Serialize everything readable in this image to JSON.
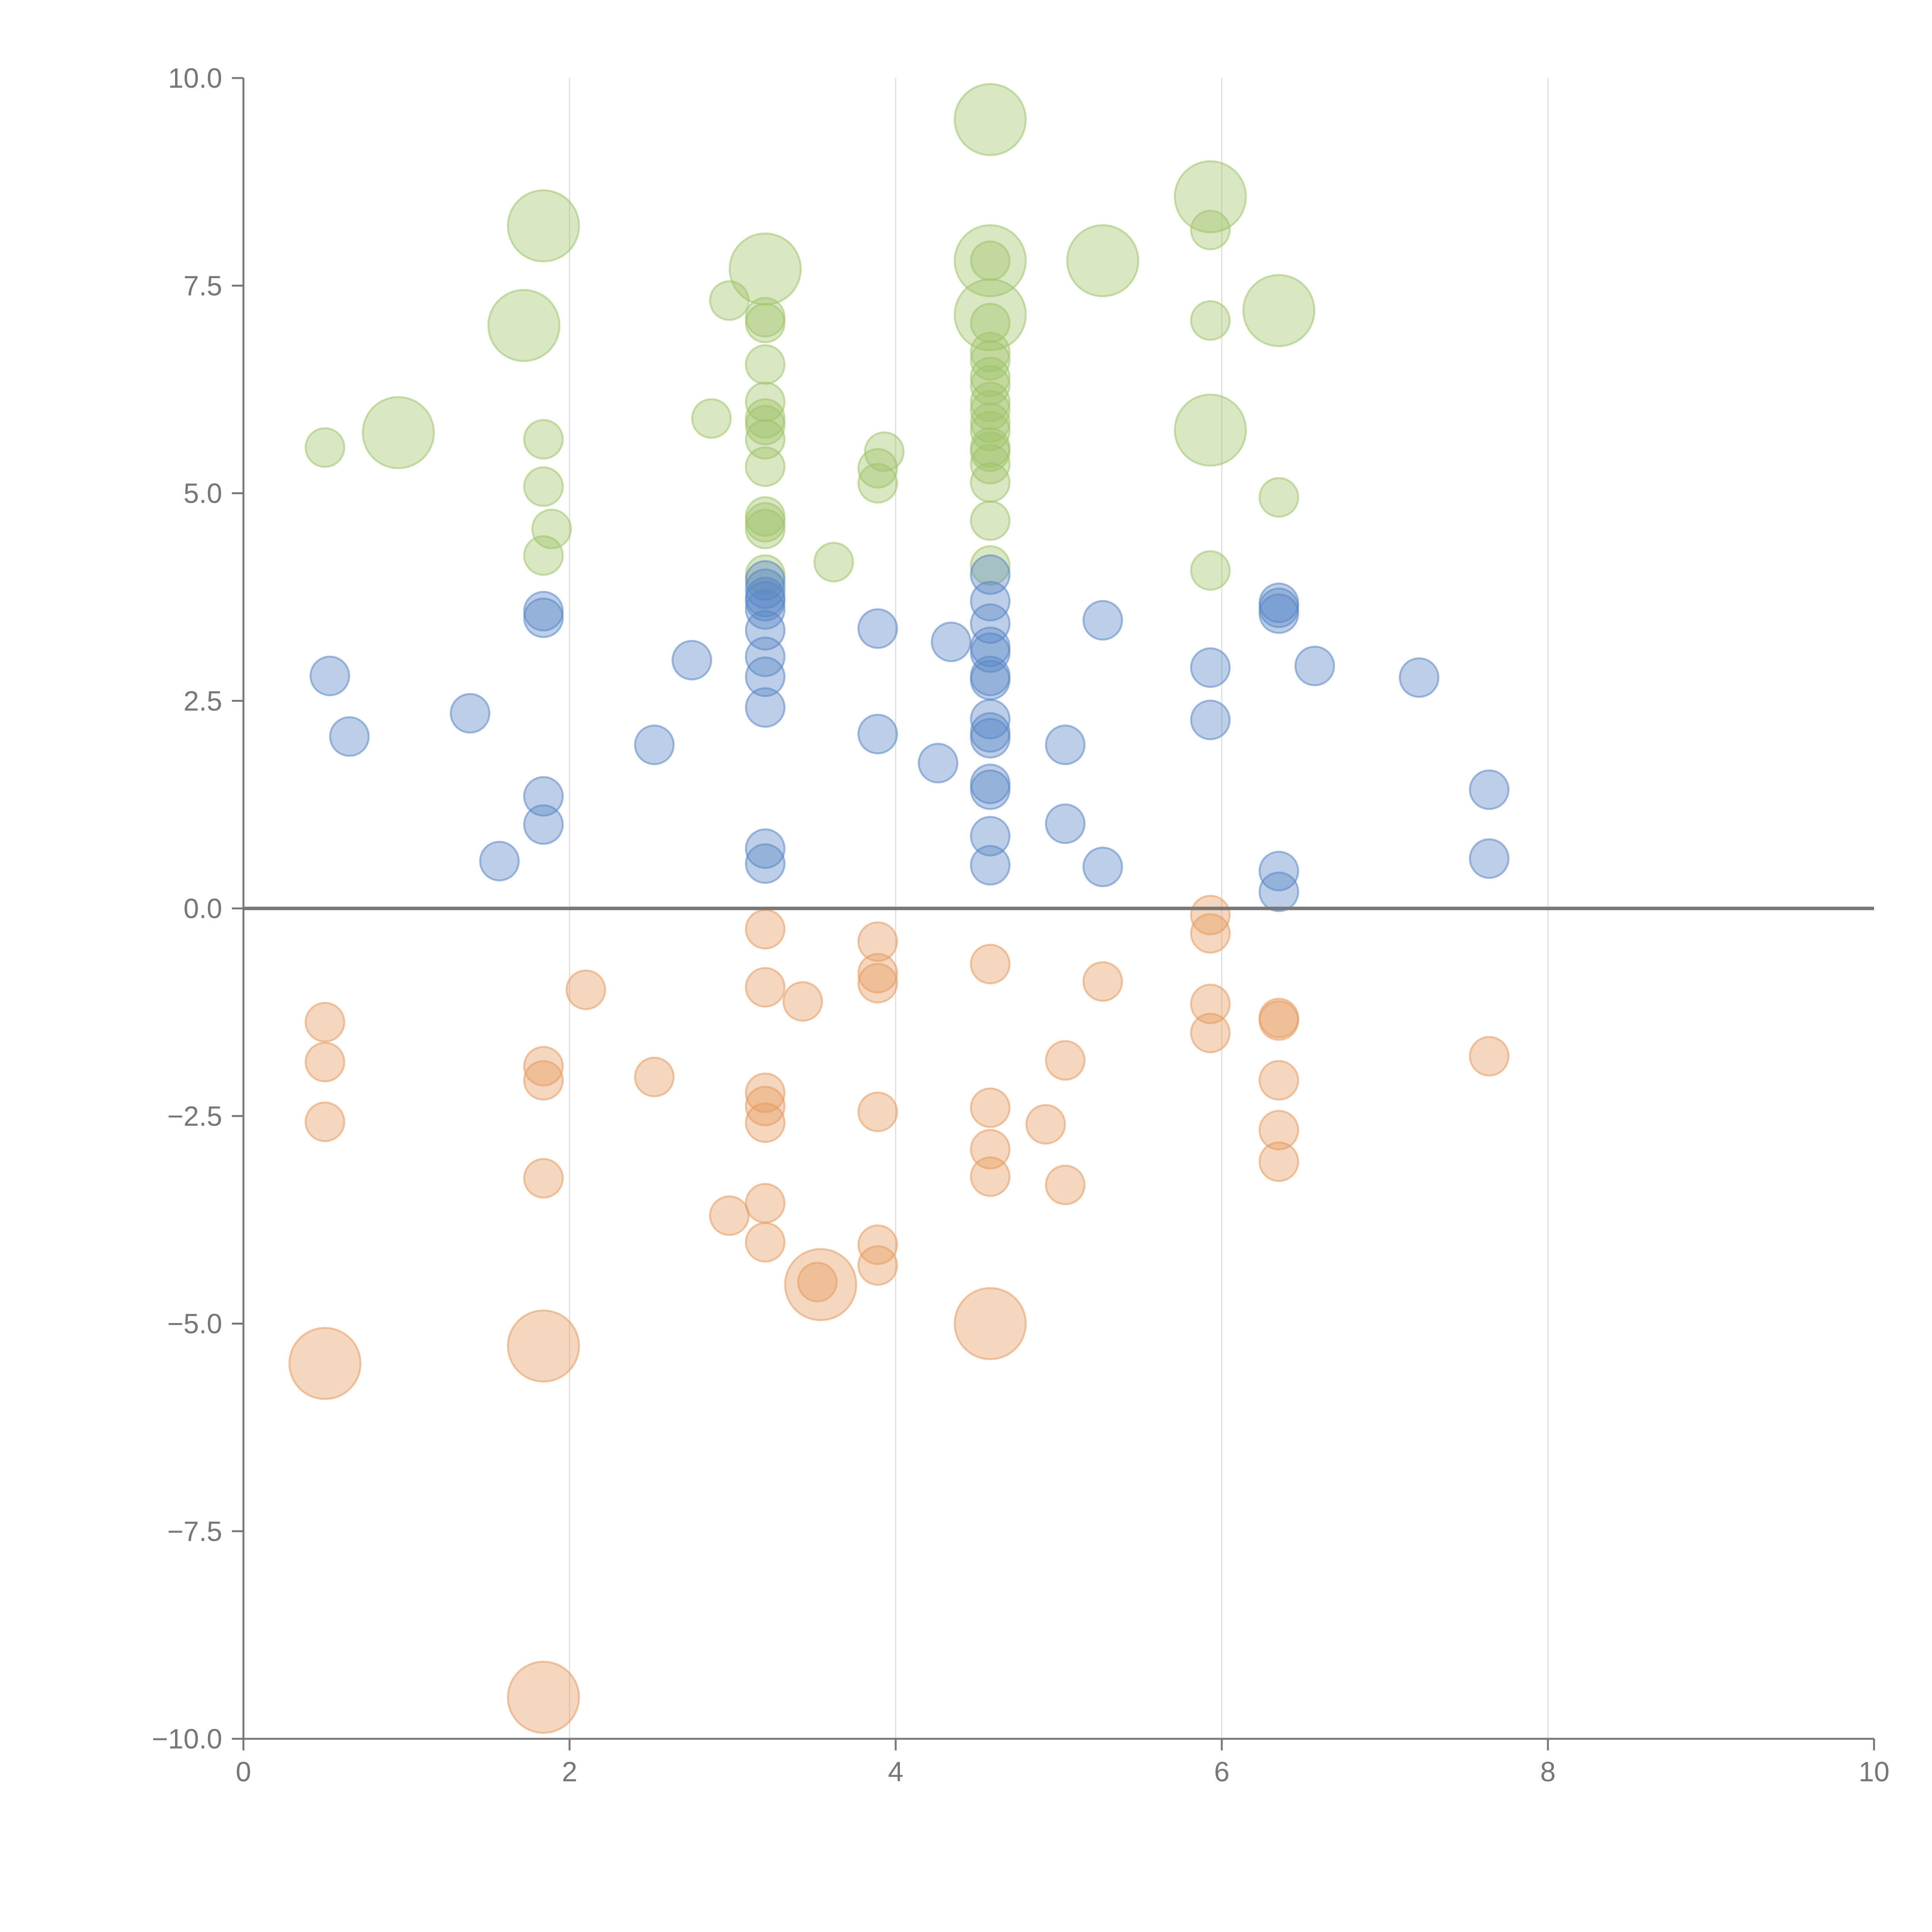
{
  "chart_data": {
    "type": "scatter",
    "title": "",
    "xlabel": "",
    "ylabel": "",
    "xlim": [
      0,
      10
    ],
    "ylim": [
      -10,
      10
    ],
    "grid": "vertical",
    "legend": "none",
    "x_ticks": [
      "0",
      "2",
      "4",
      "6",
      "8",
      "10"
    ],
    "y_ticks": [
      "10.0",
      "7.5",
      "5.0",
      "2.5",
      "0.0",
      "−2.5",
      "−5.0",
      "−7.5",
      "−10.0"
    ],
    "colors": {
      "green": "#9fc46a",
      "blue": "#5a86c5",
      "orange": "#e59a5f",
      "axis": "#777777",
      "grid": "#dddddd",
      "zero_line": "#777777"
    },
    "series": [
      {
        "name": "green",
        "color_key": "green",
        "points": [
          {
            "x": 4.58,
            "y": 9.5,
            "r": 2
          },
          {
            "x": 1.84,
            "y": 8.22,
            "r": 2
          },
          {
            "x": 5.93,
            "y": 8.57,
            "r": 2
          },
          {
            "x": 5.93,
            "y": 8.17,
            "r": 1
          },
          {
            "x": 3.2,
            "y": 7.7,
            "r": 2
          },
          {
            "x": 4.58,
            "y": 7.8,
            "r": 2
          },
          {
            "x": 4.58,
            "y": 7.8,
            "r": 1
          },
          {
            "x": 5.27,
            "y": 7.8,
            "r": 2
          },
          {
            "x": 2.98,
            "y": 7.32,
            "r": 1
          },
          {
            "x": 1.72,
            "y": 7.02,
            "r": 2
          },
          {
            "x": 3.2,
            "y": 7.12,
            "r": 1
          },
          {
            "x": 3.2,
            "y": 7.05,
            "r": 1
          },
          {
            "x": 4.58,
            "y": 7.15,
            "r": 2
          },
          {
            "x": 4.58,
            "y": 7.05,
            "r": 1
          },
          {
            "x": 5.93,
            "y": 7.08,
            "r": 1
          },
          {
            "x": 6.35,
            "y": 7.2,
            "r": 2
          },
          {
            "x": 4.58,
            "y": 6.7,
            "r": 1
          },
          {
            "x": 4.58,
            "y": 6.6,
            "r": 1
          },
          {
            "x": 3.2,
            "y": 6.55,
            "r": 1
          },
          {
            "x": 4.58,
            "y": 6.4,
            "r": 1
          },
          {
            "x": 4.58,
            "y": 6.3,
            "r": 1
          },
          {
            "x": 3.2,
            "y": 6.1,
            "r": 1
          },
          {
            "x": 4.58,
            "y": 6.1,
            "r": 1
          },
          {
            "x": 4.58,
            "y": 6.0,
            "r": 1
          },
          {
            "x": 0.5,
            "y": 5.55,
            "r": 1
          },
          {
            "x": 0.95,
            "y": 5.73,
            "r": 2
          },
          {
            "x": 1.84,
            "y": 5.65,
            "r": 1
          },
          {
            "x": 2.87,
            "y": 5.9,
            "r": 1
          },
          {
            "x": 3.2,
            "y": 5.9,
            "r": 1
          },
          {
            "x": 3.2,
            "y": 5.82,
            "r": 1
          },
          {
            "x": 3.2,
            "y": 5.65,
            "r": 1
          },
          {
            "x": 4.58,
            "y": 5.85,
            "r": 1
          },
          {
            "x": 4.58,
            "y": 5.75,
            "r": 1
          },
          {
            "x": 5.93,
            "y": 5.76,
            "r": 2
          },
          {
            "x": 4.58,
            "y": 5.55,
            "r": 1
          },
          {
            "x": 4.58,
            "y": 5.5,
            "r": 1
          },
          {
            "x": 3.93,
            "y": 5.5,
            "r": 1
          },
          {
            "x": 4.58,
            "y": 5.35,
            "r": 1
          },
          {
            "x": 3.2,
            "y": 5.32,
            "r": 1
          },
          {
            "x": 3.89,
            "y": 5.3,
            "r": 1
          },
          {
            "x": 1.84,
            "y": 5.08,
            "r": 1
          },
          {
            "x": 3.89,
            "y": 5.12,
            "r": 1
          },
          {
            "x": 4.58,
            "y": 5.13,
            "r": 1
          },
          {
            "x": 6.35,
            "y": 4.95,
            "r": 1
          },
          {
            "x": 3.2,
            "y": 4.72,
            "r": 1
          },
          {
            "x": 3.2,
            "y": 4.65,
            "r": 1
          },
          {
            "x": 4.58,
            "y": 4.67,
            "r": 1
          },
          {
            "x": 1.89,
            "y": 4.57,
            "r": 1
          },
          {
            "x": 3.2,
            "y": 4.57,
            "r": 1
          },
          {
            "x": 1.84,
            "y": 4.25,
            "r": 1
          },
          {
            "x": 3.62,
            "y": 4.17,
            "r": 1
          },
          {
            "x": 4.58,
            "y": 4.13,
            "r": 1
          },
          {
            "x": 5.93,
            "y": 4.07,
            "r": 1
          },
          {
            "x": 3.2,
            "y": 4.02,
            "r": 1
          }
        ]
      },
      {
        "name": "blue",
        "color_key": "blue",
        "points": [
          {
            "x": 4.58,
            "y": 4.02,
            "r": 1
          },
          {
            "x": 3.2,
            "y": 3.95,
            "r": 1
          },
          {
            "x": 3.2,
            "y": 3.85,
            "r": 1
          },
          {
            "x": 3.2,
            "y": 3.75,
            "r": 1
          },
          {
            "x": 3.2,
            "y": 3.7,
            "r": 1
          },
          {
            "x": 4.58,
            "y": 3.7,
            "r": 1
          },
          {
            "x": 6.35,
            "y": 3.68,
            "r": 1
          },
          {
            "x": 6.35,
            "y": 3.62,
            "r": 1
          },
          {
            "x": 3.2,
            "y": 3.6,
            "r": 1
          },
          {
            "x": 1.84,
            "y": 3.58,
            "r": 1
          },
          {
            "x": 6.35,
            "y": 3.55,
            "r": 1
          },
          {
            "x": 1.84,
            "y": 3.5,
            "r": 1
          },
          {
            "x": 4.58,
            "y": 3.43,
            "r": 1
          },
          {
            "x": 5.27,
            "y": 3.47,
            "r": 1
          },
          {
            "x": 3.89,
            "y": 3.37,
            "r": 1
          },
          {
            "x": 3.2,
            "y": 3.35,
            "r": 1
          },
          {
            "x": 4.34,
            "y": 3.21,
            "r": 1
          },
          {
            "x": 4.58,
            "y": 3.15,
            "r": 1
          },
          {
            "x": 4.58,
            "y": 3.08,
            "r": 1
          },
          {
            "x": 3.2,
            "y": 3.03,
            "r": 1
          },
          {
            "x": 2.75,
            "y": 2.99,
            "r": 1
          },
          {
            "x": 5.93,
            "y": 2.9,
            "r": 1
          },
          {
            "x": 6.57,
            "y": 2.92,
            "r": 1
          },
          {
            "x": 0.53,
            "y": 2.8,
            "r": 1
          },
          {
            "x": 3.2,
            "y": 2.79,
            "r": 1
          },
          {
            "x": 4.58,
            "y": 2.8,
            "r": 1
          },
          {
            "x": 4.58,
            "y": 2.75,
            "r": 1
          },
          {
            "x": 7.21,
            "y": 2.78,
            "r": 1
          },
          {
            "x": 3.2,
            "y": 2.42,
            "r": 1
          },
          {
            "x": 1.39,
            "y": 2.35,
            "r": 1
          },
          {
            "x": 4.58,
            "y": 2.28,
            "r": 1
          },
          {
            "x": 5.93,
            "y": 2.27,
            "r": 1
          },
          {
            "x": 3.89,
            "y": 2.1,
            "r": 1
          },
          {
            "x": 4.58,
            "y": 2.12,
            "r": 1
          },
          {
            "x": 4.58,
            "y": 2.05,
            "r": 1
          },
          {
            "x": 0.65,
            "y": 2.07,
            "r": 1
          },
          {
            "x": 2.52,
            "y": 1.97,
            "r": 1
          },
          {
            "x": 5.04,
            "y": 1.97,
            "r": 1
          },
          {
            "x": 4.26,
            "y": 1.75,
            "r": 1
          },
          {
            "x": 4.58,
            "y": 1.5,
            "r": 1
          },
          {
            "x": 4.58,
            "y": 1.43,
            "r": 1
          },
          {
            "x": 7.64,
            "y": 1.43,
            "r": 1
          },
          {
            "x": 1.84,
            "y": 1.35,
            "r": 1
          },
          {
            "x": 1.84,
            "y": 1.01,
            "r": 1
          },
          {
            "x": 5.04,
            "y": 1.02,
            "r": 1
          },
          {
            "x": 4.58,
            "y": 0.87,
            "r": 1
          },
          {
            "x": 3.2,
            "y": 0.72,
            "r": 1
          },
          {
            "x": 7.64,
            "y": 0.6,
            "r": 1
          },
          {
            "x": 1.57,
            "y": 0.57,
            "r": 1
          },
          {
            "x": 3.2,
            "y": 0.54,
            "r": 1
          },
          {
            "x": 4.58,
            "y": 0.52,
            "r": 1
          },
          {
            "x": 5.27,
            "y": 0.5,
            "r": 1
          },
          {
            "x": 6.35,
            "y": 0.45,
            "r": 1
          },
          {
            "x": 6.35,
            "y": 0.2,
            "r": 1
          }
        ]
      },
      {
        "name": "orange",
        "color_key": "orange",
        "points": [
          {
            "x": 5.93,
            "y": -0.08,
            "r": 1
          },
          {
            "x": 3.2,
            "y": -0.25,
            "r": 1
          },
          {
            "x": 5.93,
            "y": -0.3,
            "r": 1
          },
          {
            "x": 3.89,
            "y": -0.4,
            "r": 1
          },
          {
            "x": 4.58,
            "y": -0.67,
            "r": 1
          },
          {
            "x": 3.89,
            "y": -0.78,
            "r": 1
          },
          {
            "x": 3.89,
            "y": -0.9,
            "r": 1
          },
          {
            "x": 5.27,
            "y": -0.88,
            "r": 1
          },
          {
            "x": 2.1,
            "y": -0.98,
            "r": 1
          },
          {
            "x": 3.2,
            "y": -0.95,
            "r": 1
          },
          {
            "x": 3.43,
            "y": -1.12,
            "r": 1
          },
          {
            "x": 5.93,
            "y": -1.15,
            "r": 1
          },
          {
            "x": 0.5,
            "y": -1.37,
            "r": 1
          },
          {
            "x": 6.35,
            "y": -1.32,
            "r": 1
          },
          {
            "x": 6.35,
            "y": -1.35,
            "r": 1
          },
          {
            "x": 5.93,
            "y": -1.5,
            "r": 1
          },
          {
            "x": 7.64,
            "y": -1.78,
            "r": 1
          },
          {
            "x": 0.5,
            "y": -1.85,
            "r": 1
          },
          {
            "x": 5.04,
            "y": -1.83,
            "r": 1
          },
          {
            "x": 1.84,
            "y": -1.9,
            "r": 1
          },
          {
            "x": 1.84,
            "y": -2.07,
            "r": 1
          },
          {
            "x": 2.52,
            "y": -2.03,
            "r": 1
          },
          {
            "x": 6.35,
            "y": -2.07,
            "r": 1
          },
          {
            "x": 3.2,
            "y": -2.22,
            "r": 1
          },
          {
            "x": 3.2,
            "y": -2.38,
            "r": 1
          },
          {
            "x": 4.58,
            "y": -2.4,
            "r": 1
          },
          {
            "x": 3.89,
            "y": -2.45,
            "r": 1
          },
          {
            "x": 0.5,
            "y": -2.57,
            "r": 1
          },
          {
            "x": 3.2,
            "y": -2.58,
            "r": 1
          },
          {
            "x": 4.92,
            "y": -2.6,
            "r": 1
          },
          {
            "x": 6.35,
            "y": -2.67,
            "r": 1
          },
          {
            "x": 4.58,
            "y": -2.9,
            "r": 1
          },
          {
            "x": 6.35,
            "y": -3.05,
            "r": 1
          },
          {
            "x": 1.84,
            "y": -3.25,
            "r": 1
          },
          {
            "x": 4.58,
            "y": -3.23,
            "r": 1
          },
          {
            "x": 5.04,
            "y": -3.33,
            "r": 1
          },
          {
            "x": 3.2,
            "y": -3.55,
            "r": 1
          },
          {
            "x": 2.98,
            "y": -3.7,
            "r": 1
          },
          {
            "x": 3.2,
            "y": -4.02,
            "r": 1
          },
          {
            "x": 3.89,
            "y": -4.05,
            "r": 1
          },
          {
            "x": 3.89,
            "y": -4.3,
            "r": 1
          },
          {
            "x": 3.54,
            "y": -4.53,
            "r": 2
          },
          {
            "x": 3.52,
            "y": -4.5,
            "r": 1
          },
          {
            "x": 4.58,
            "y": -5.0,
            "r": 2
          },
          {
            "x": 1.84,
            "y": -5.27,
            "r": 2
          },
          {
            "x": 0.5,
            "y": -5.48,
            "r": 2
          },
          {
            "x": 1.84,
            "y": -9.5,
            "r": 2
          }
        ]
      }
    ]
  }
}
